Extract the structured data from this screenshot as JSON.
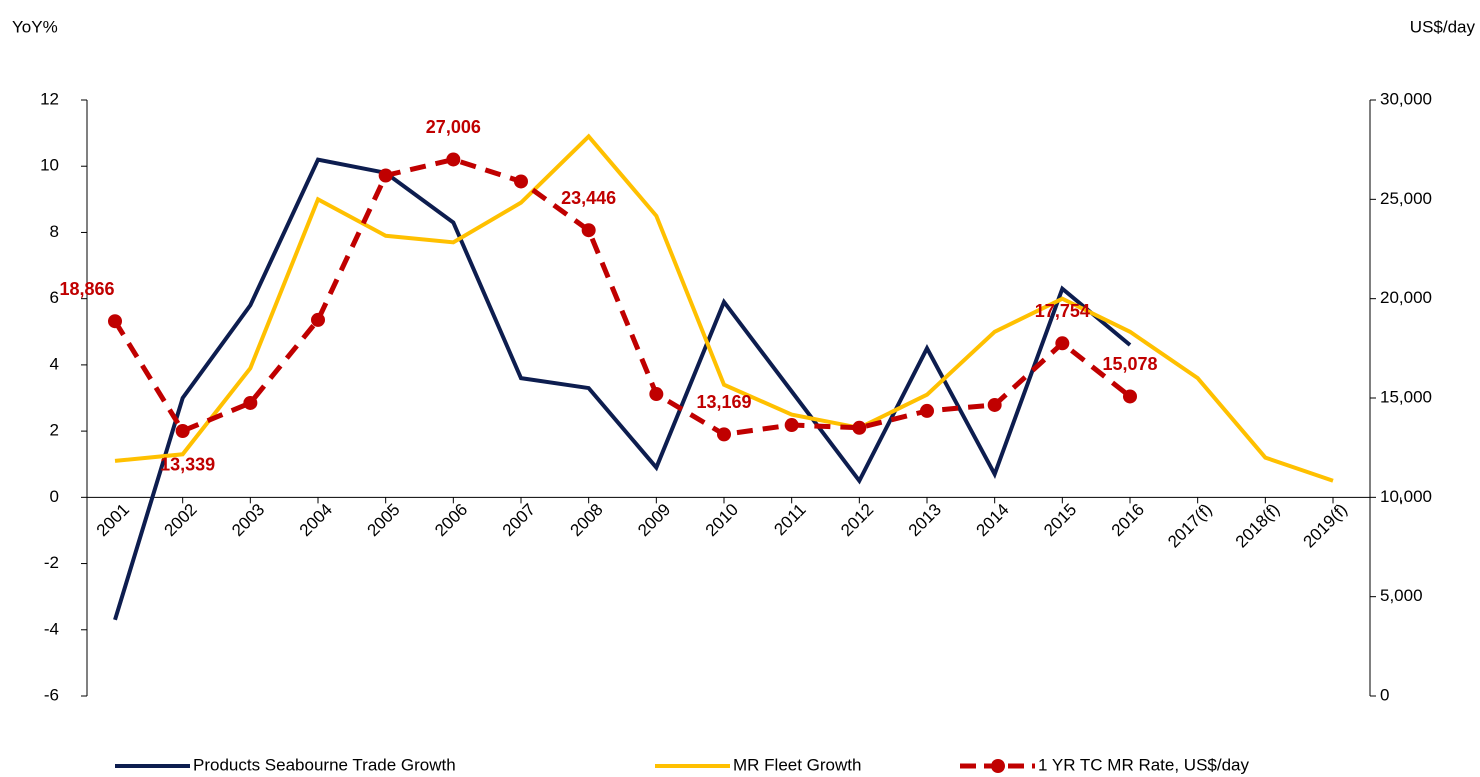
{
  "chart_data": {
    "type": "line",
    "y_label": "YoY%",
    "y2_label": "US$/day",
    "categories": [
      "2001",
      "2002",
      "2003",
      "2004",
      "2005",
      "2006",
      "2007",
      "2008",
      "2009",
      "2010",
      "2011",
      "2012",
      "2013",
      "2014",
      "2015",
      "2016",
      "2017(f)",
      "2018(f)",
      "2019(f)"
    ],
    "ylim": [
      -6,
      12
    ],
    "yticks": [
      -6,
      -4,
      -2,
      0,
      2,
      4,
      6,
      8,
      10,
      12
    ],
    "y2lim": [
      0,
      30000
    ],
    "y2ticks": [
      0,
      {
        "value": 5000,
        "label": "5,000"
      },
      {
        "value": 10000,
        "label": "10,000"
      },
      {
        "value": 15000,
        "label": "15,000"
      },
      {
        "value": 20000,
        "label": "20,000"
      },
      {
        "value": 25000,
        "label": "25,000"
      },
      {
        "value": 30000,
        "label": "30,000"
      }
    ],
    "series": [
      {
        "name": "Products Seabourne Trade Growth",
        "color": "#0d1d4f",
        "values": [
          -3.7,
          3.0,
          5.8,
          10.2,
          9.8,
          8.3,
          3.6,
          3.3,
          0.9,
          5.9,
          3.2,
          0.5,
          4.5,
          0.7,
          6.3,
          4.6,
          null,
          null,
          null
        ]
      },
      {
        "name": "MR Fleet Growth",
        "color": "#ffc000",
        "values": [
          1.1,
          1.3,
          3.9,
          9.0,
          7.9,
          7.7,
          8.9,
          10.9,
          8.5,
          3.4,
          2.5,
          2.1,
          3.1,
          5.0,
          6.0,
          5.0,
          3.6,
          1.2,
          0.5
        ]
      },
      {
        "name": "1 YR TC MR Rate, US$/day",
        "color": "#c00000",
        "axis": "y2",
        "dashed": true,
        "markers": true,
        "values": [
          18866,
          13339,
          14750,
          18930,
          26200,
          27006,
          25900,
          23446,
          15200,
          13169,
          13640,
          13500,
          14350,
          14650,
          17754,
          15078,
          null,
          null,
          null
        ],
        "value_labels": [
          "18,866",
          "13,339",
          null,
          null,
          null,
          "27,006",
          null,
          "23,446",
          null,
          "13,169",
          null,
          null,
          null,
          null,
          "17,754",
          "15,078",
          null,
          null,
          null
        ]
      }
    ],
    "legend": "bottom"
  }
}
